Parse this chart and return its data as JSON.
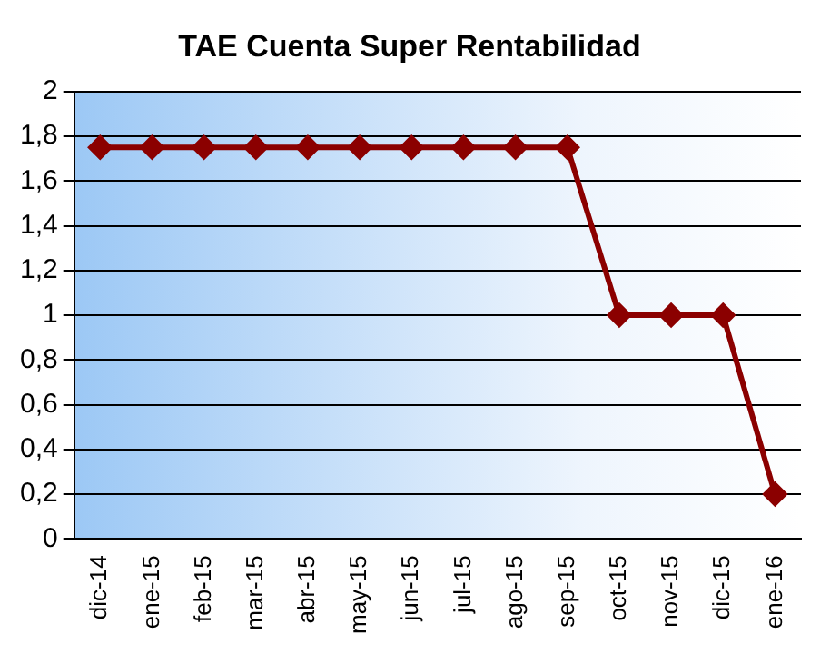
{
  "chart_data": {
    "type": "line",
    "title": "TAE Cuenta Super Rentabilidad",
    "categories": [
      "dic-14",
      "ene-15",
      "feb-15",
      "mar-15",
      "abr-15",
      "may-15",
      "jun-15",
      "jul-15",
      "ago-15",
      "sep-15",
      "oct-15",
      "nov-15",
      "dic-15",
      "ene-16"
    ],
    "series": [
      {
        "color": "#8b0000",
        "values": [
          1.75,
          1.75,
          1.75,
          1.75,
          1.75,
          1.75,
          1.75,
          1.75,
          1.75,
          1.75,
          1,
          1,
          1,
          0.2
        ]
      }
    ],
    "ylim": [
      0,
      2
    ],
    "yticks": [
      0,
      {
        "value": 0.2,
        "label": "0,2"
      },
      {
        "value": 0.4,
        "label": "0,4"
      },
      {
        "value": 0.6,
        "label": "0,6"
      },
      {
        "value": 0.8,
        "label": "0,8"
      },
      1,
      {
        "value": 1.2,
        "label": "1,2"
      },
      {
        "value": 1.4,
        "label": "1,4"
      },
      {
        "value": 1.6,
        "label": "1,6"
      },
      {
        "value": 1.8,
        "label": "1,8"
      },
      2
    ],
    "grid": "y",
    "legend": false,
    "marker": "diamond",
    "line_style": "solid"
  }
}
